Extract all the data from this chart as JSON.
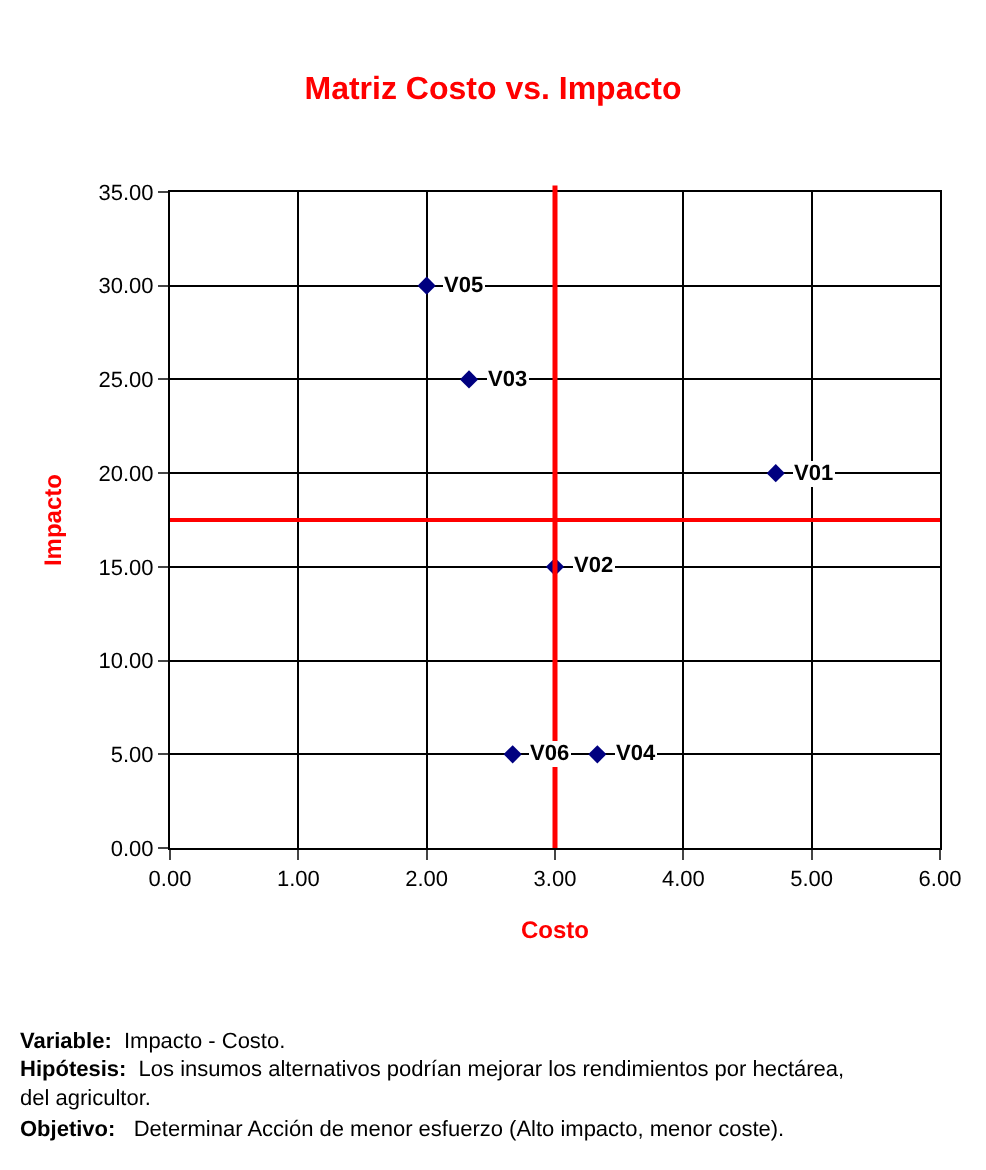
{
  "chart_data": {
    "type": "scatter",
    "title": "Matriz Costo vs. Impacto",
    "xlabel": "Costo",
    "ylabel": "Impacto",
    "x": [
      4.72,
      3.0,
      2.33,
      3.33,
      2.0,
      2.67
    ],
    "series": [
      {
        "color": "#000080",
        "values": [
          20,
          15,
          25,
          5,
          30,
          5
        ]
      }
    ],
    "marker": "diamond",
    "grid": true,
    "xlim": [
      0,
      6
    ],
    "xticks": [
      {
        "value": 0,
        "label": "0.00"
      },
      {
        "value": 1,
        "label": "1.00"
      },
      {
        "value": 2,
        "label": "2.00"
      },
      {
        "value": 3,
        "label": "3.00"
      },
      {
        "value": 4,
        "label": "4.00"
      },
      {
        "value": 5,
        "label": "5.00"
      },
      {
        "value": 6,
        "label": "6.00"
      }
    ],
    "ylim": [
      0,
      35
    ],
    "yticks": [
      {
        "value": 0,
        "label": "0.00"
      },
      {
        "value": 5,
        "label": "5.00"
      },
      {
        "value": 10,
        "label": "10.00"
      },
      {
        "value": 15,
        "label": "15.00"
      },
      {
        "value": 20,
        "label": "20.00"
      },
      {
        "value": 25,
        "label": "25.00"
      },
      {
        "value": 30,
        "label": "30.00"
      },
      {
        "value": 35,
        "label": "35.00"
      }
    ],
    "ref_lines": [
      {
        "axis": "x",
        "value": 3.0,
        "color": "#ff0000"
      },
      {
        "axis": "y",
        "value": 17.5,
        "color": "#ff0000"
      }
    ],
    "annotations": [
      {
        "text": "V01",
        "x": 4.72,
        "y": 20
      },
      {
        "text": "V02",
        "x": 3.0,
        "y": 15
      },
      {
        "text": "V03",
        "x": 2.33,
        "y": 25
      },
      {
        "text": "V04",
        "x": 3.33,
        "y": 5
      },
      {
        "text": "V05",
        "x": 2.0,
        "y": 30
      },
      {
        "text": "V06",
        "x": 2.67,
        "y": 5
      },
      "Variable:  Impacto - Costo.",
      "Hipótesis:  Los insumos alternativos podrían mejorar los rendimientos por hectárea, del agricultor.",
      "Objetivo:   Determinar Acción de menor esfuerzo (Alto impacto, menor coste)."
    ]
  }
}
